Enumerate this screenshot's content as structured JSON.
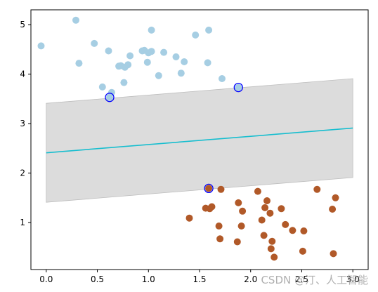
{
  "chart_data": {
    "type": "scatter",
    "title": "",
    "xlabel": "",
    "ylabel": "",
    "xlim": [
      -0.15,
      3.15
    ],
    "ylim": [
      0.05,
      5.3
    ],
    "xticks": [
      0.0,
      0.5,
      1.0,
      1.5,
      2.0,
      2.5,
      3.0
    ],
    "xtick_labels": [
      "0.0",
      "0.5",
      "1.0",
      "1.5",
      "2.0",
      "2.5",
      "3.0"
    ],
    "yticks": [
      1,
      2,
      3,
      4,
      5
    ],
    "ytick_labels": [
      "1",
      "2",
      "3",
      "4",
      "5"
    ],
    "grid": false,
    "colors": {
      "class_a": "#a6cee3",
      "class_b": "#b15928",
      "decision_line": "#17becf",
      "margin_band": "#d3d3d3",
      "support_vector_edge": "#0000ff"
    },
    "series": [
      {
        "class": "a",
        "points": [
          [
            -0.05,
            4.57
          ],
          [
            0.29,
            5.09
          ],
          [
            0.32,
            4.22
          ],
          [
            0.47,
            4.62
          ],
          [
            0.55,
            3.74
          ],
          [
            0.61,
            4.47
          ],
          [
            0.64,
            3.63
          ],
          [
            0.71,
            4.16
          ],
          [
            0.73,
            4.17
          ],
          [
            0.76,
            3.83
          ],
          [
            0.77,
            4.14
          ],
          [
            0.8,
            4.19
          ],
          [
            0.82,
            4.37
          ],
          [
            0.94,
            4.47
          ],
          [
            0.96,
            4.48
          ],
          [
            0.99,
            4.24
          ],
          [
            1.0,
            4.43
          ],
          [
            1.03,
            4.46
          ],
          [
            1.03,
            4.89
          ],
          [
            1.1,
            3.97
          ],
          [
            1.15,
            4.44
          ],
          [
            1.27,
            4.35
          ],
          [
            1.32,
            4.02
          ],
          [
            1.35,
            4.25
          ],
          [
            1.46,
            4.79
          ],
          [
            1.58,
            4.23
          ],
          [
            1.59,
            4.89
          ],
          [
            1.72,
            3.91
          ],
          [
            0.62,
            3.53
          ],
          [
            1.88,
            3.73
          ]
        ]
      },
      {
        "class": "b",
        "points": [
          [
            1.4,
            1.09
          ],
          [
            1.56,
            1.29
          ],
          [
            1.6,
            1.28
          ],
          [
            1.62,
            1.32
          ],
          [
            1.69,
            0.93
          ],
          [
            1.7,
            0.67
          ],
          [
            1.71,
            1.67
          ],
          [
            1.87,
            0.61
          ],
          [
            1.88,
            1.4
          ],
          [
            1.91,
            0.93
          ],
          [
            1.92,
            1.23
          ],
          [
            2.07,
            1.63
          ],
          [
            2.11,
            1.05
          ],
          [
            2.13,
            0.74
          ],
          [
            2.14,
            1.3
          ],
          [
            2.16,
            1.44
          ],
          [
            2.19,
            1.19
          ],
          [
            2.2,
            0.47
          ],
          [
            2.21,
            0.62
          ],
          [
            2.23,
            0.3
          ],
          [
            2.3,
            1.28
          ],
          [
            2.34,
            0.96
          ],
          [
            2.41,
            0.84
          ],
          [
            2.51,
            0.42
          ],
          [
            2.52,
            0.83
          ],
          [
            2.65,
            1.67
          ],
          [
            2.8,
            1.27
          ],
          [
            2.81,
            0.37
          ],
          [
            2.83,
            1.5
          ],
          [
            1.59,
            1.69
          ]
        ]
      }
    ],
    "decision_boundary": {
      "x": [
        0.0,
        3.0
      ],
      "y": [
        2.41,
        2.91
      ]
    },
    "margin": {
      "x": [
        0.0,
        3.0
      ],
      "upper": [
        3.41,
        3.91
      ],
      "lower": [
        1.41,
        1.91
      ]
    },
    "support_vectors": [
      [
        0.62,
        3.53
      ],
      [
        1.88,
        3.73
      ],
      [
        1.59,
        1.69
      ]
    ]
  },
  "watermark": "CSDN @汀、人工智能"
}
